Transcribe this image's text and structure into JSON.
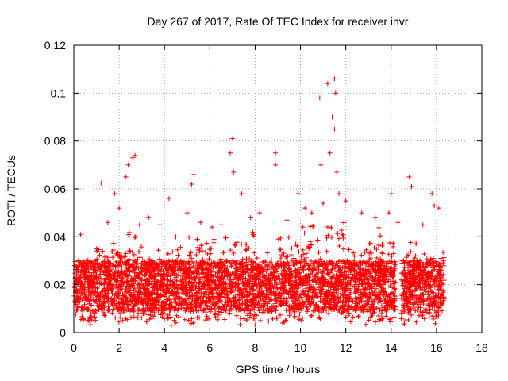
{
  "chart_data": {
    "type": "scatter",
    "title": "Day 267 of 2017, Rate Of TEC Index for receiver invr",
    "xlabel": "GPS time / hours",
    "ylabel": "ROTI / TECUs",
    "xlim": [
      0,
      18
    ],
    "ylim": [
      0,
      0.12
    ],
    "x_ticks": [
      0,
      2,
      4,
      6,
      8,
      10,
      12,
      14,
      16,
      18
    ],
    "x_tick_labels": [
      "0",
      "2",
      "4",
      "6",
      "8",
      "10",
      "12",
      "14",
      "16",
      "18"
    ],
    "y_ticks": [
      0,
      0.02,
      0.04,
      0.06,
      0.08,
      0.1,
      0.12
    ],
    "y_tick_labels": [
      "0",
      "0.02",
      "0.04",
      "0.06",
      "0.08",
      "0.1",
      "0.12"
    ],
    "grid": true,
    "marker": "plus",
    "series": [
      {
        "name": "ROTI",
        "color": "#ff0000",
        "points": [
          [
            0.1,
            0.017
          ],
          [
            0.2,
            0.03
          ],
          [
            0.3,
            0.041
          ],
          [
            0.5,
            0.022
          ],
          [
            0.7,
            0.012
          ],
          [
            1.0,
            0.035
          ],
          [
            1.2,
            0.0625
          ],
          [
            1.5,
            0.046
          ],
          [
            1.8,
            0.058
          ],
          [
            2.0,
            0.052
          ],
          [
            2.3,
            0.065
          ],
          [
            2.4,
            0.07
          ],
          [
            2.6,
            0.073
          ],
          [
            2.7,
            0.074
          ],
          [
            2.9,
            0.045
          ],
          [
            3.3,
            0.048
          ],
          [
            3.8,
            0.045
          ],
          [
            4.2,
            0.056
          ],
          [
            4.5,
            0.04
          ],
          [
            5.0,
            0.05
          ],
          [
            5.2,
            0.062
          ],
          [
            5.3,
            0.066
          ],
          [
            5.6,
            0.046
          ],
          [
            6.1,
            0.044
          ],
          [
            6.5,
            0.045
          ],
          [
            6.9,
            0.075
          ],
          [
            7.0,
            0.081
          ],
          [
            7.05,
            0.067
          ],
          [
            7.4,
            0.058
          ],
          [
            7.8,
            0.048
          ],
          [
            8.2,
            0.05
          ],
          [
            8.9,
            0.075
          ],
          [
            8.9,
            0.07
          ],
          [
            9.4,
            0.047
          ],
          [
            9.9,
            0.058
          ],
          [
            10.2,
            0.052
          ],
          [
            10.5,
            0.05
          ],
          [
            10.85,
            0.098
          ],
          [
            10.9,
            0.07
          ],
          [
            11.0,
            0.054
          ],
          [
            11.2,
            0.104
          ],
          [
            11.3,
            0.075
          ],
          [
            11.4,
            0.09
          ],
          [
            11.5,
            0.106
          ],
          [
            11.55,
            0.1
          ],
          [
            11.5,
            0.085
          ],
          [
            11.6,
            0.067
          ],
          [
            11.7,
            0.058
          ],
          [
            12.0,
            0.055
          ],
          [
            12.7,
            0.05
          ],
          [
            13.3,
            0.048
          ],
          [
            13.9,
            0.05
          ],
          [
            14.0,
            0.058
          ],
          [
            14.3,
            0.046
          ],
          [
            14.8,
            0.065
          ],
          [
            14.9,
            0.061
          ],
          [
            15.4,
            0.045
          ],
          [
            15.8,
            0.058
          ],
          [
            15.9,
            0.053
          ],
          [
            16.1,
            0.052
          ]
        ]
      }
    ],
    "gaps": [
      [
        14.22,
        14.42
      ]
    ],
    "density_bands": [
      [
        0.0,
        1.0,
        0.034
      ],
      [
        1.0,
        2.0,
        0.04
      ],
      [
        2.0,
        3.0,
        0.042
      ],
      [
        3.0,
        4.0,
        0.035
      ],
      [
        4.0,
        5.0,
        0.036
      ],
      [
        5.0,
        6.0,
        0.04
      ],
      [
        6.0,
        7.0,
        0.042
      ],
      [
        7.0,
        8.0,
        0.045
      ],
      [
        8.0,
        9.0,
        0.038
      ],
      [
        9.0,
        10.0,
        0.042
      ],
      [
        10.0,
        11.0,
        0.045
      ],
      [
        11.0,
        12.0,
        0.048
      ],
      [
        12.0,
        13.0,
        0.04
      ],
      [
        13.0,
        14.2,
        0.044
      ],
      [
        14.45,
        15.5,
        0.038
      ],
      [
        15.5,
        16.35,
        0.036
      ]
    ]
  }
}
